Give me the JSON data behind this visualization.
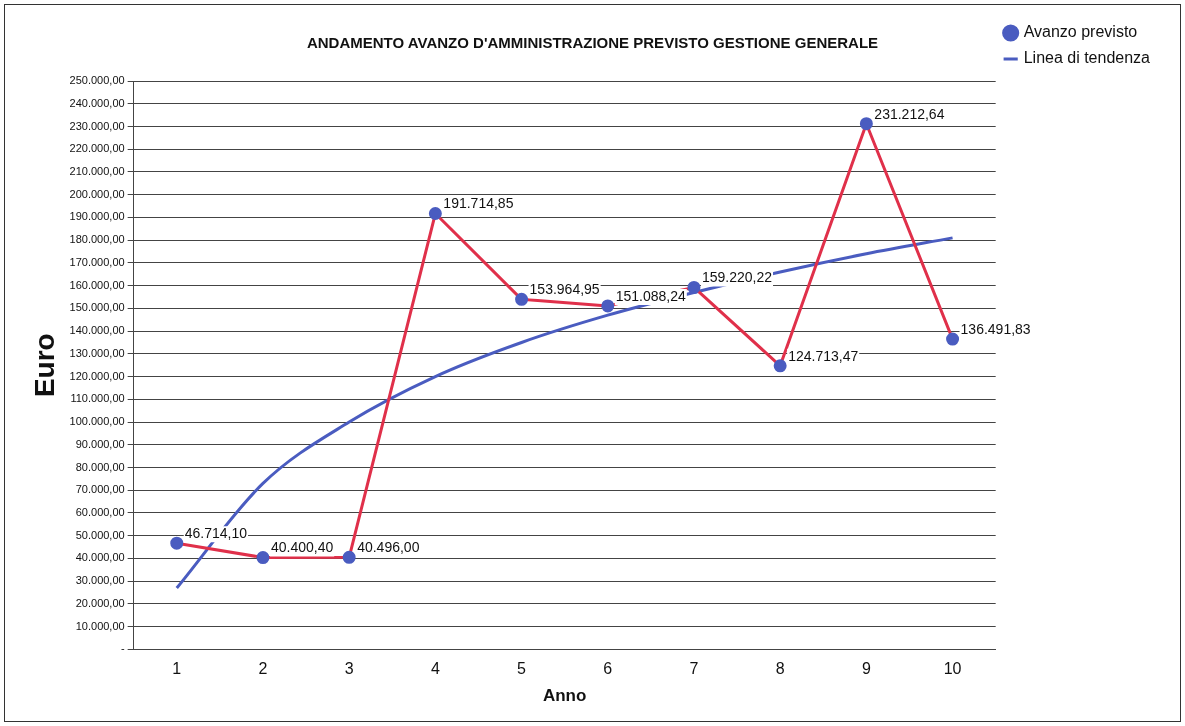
{
  "chart_data": {
    "type": "line",
    "title": "ANDAMENTO AVANZO D'AMMINISTRAZIONE PREVISTO GESTIONE GENERALE",
    "xlabel": "Anno",
    "ylabel": "Euro",
    "categories": [
      "1",
      "2",
      "3",
      "4",
      "5",
      "6",
      "7",
      "8",
      "9",
      "10"
    ],
    "series": [
      {
        "name": "Avanzo previsto",
        "color": "#e0304a",
        "marker": "circle",
        "values": [
          46714.1,
          40400.4,
          40496.0,
          191714.85,
          153964.95,
          151088.24,
          159220.22,
          124713.47,
          231212.64,
          136491.83
        ],
        "value_labels": [
          "46.714,10",
          "40.400,40",
          "40.496,00",
          "191.714,85",
          "153.964,95",
          "151.088,24",
          "159.220,22",
          "124.713,47",
          "231.212,64",
          "136.491,83"
        ]
      },
      {
        "name": "Linea di tendenza",
        "color": "#4a5cc0",
        "marker": "none",
        "values": [
          27000,
          73000,
          100000,
          120000,
          135000,
          147000,
          157000,
          166000,
          174000,
          181000
        ]
      }
    ],
    "ylim": [
      0,
      250000
    ],
    "yticks": [
      {
        "value": 0,
        "label": "-"
      },
      {
        "value": 10000,
        "label": "10.000,00"
      },
      {
        "value": 20000,
        "label": "20.000,00"
      },
      {
        "value": 30000,
        "label": "30.000,00"
      },
      {
        "value": 40000,
        "label": "40.000,00"
      },
      {
        "value": 50000,
        "label": "50.000,00"
      },
      {
        "value": 60000,
        "label": "60.000,00"
      },
      {
        "value": 70000,
        "label": "70.000,00"
      },
      {
        "value": 80000,
        "label": "80.000,00"
      },
      {
        "value": 90000,
        "label": "90.000,00"
      },
      {
        "value": 100000,
        "label": "100.000,00"
      },
      {
        "value": 110000,
        "label": "110.000,00"
      },
      {
        "value": 120000,
        "label": "120.000,00"
      },
      {
        "value": 130000,
        "label": "130.000,00"
      },
      {
        "value": 140000,
        "label": "140.000,00"
      },
      {
        "value": 150000,
        "label": "150.000,00"
      },
      {
        "value": 160000,
        "label": "160.000,00"
      },
      {
        "value": 170000,
        "label": "170.000,00"
      },
      {
        "value": 180000,
        "label": "180.000,00"
      },
      {
        "value": 190000,
        "label": "190.000,00"
      },
      {
        "value": 200000,
        "label": "200.000,00"
      },
      {
        "value": 210000,
        "label": "210.000,00"
      },
      {
        "value": 220000,
        "label": "220.000,00"
      },
      {
        "value": 230000,
        "label": "230.000,00"
      },
      {
        "value": 240000,
        "label": "240.000,00"
      },
      {
        "value": 250000,
        "label": "250.000,00"
      }
    ],
    "grid": "y",
    "legend": "right"
  }
}
